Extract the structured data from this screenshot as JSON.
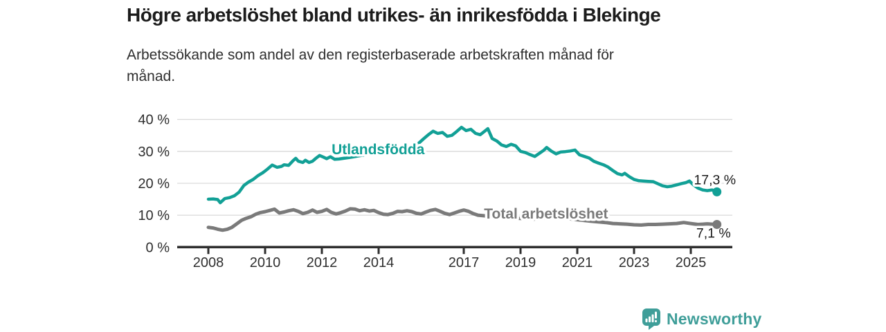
{
  "header": {
    "title": "Högre arbetslöshet bland utrikes- än inrikesfödda i Blekinge",
    "subtitle": "Arbetssökande som andel av den registerbaserade arbetskraften månad för\nmånad."
  },
  "footer": {
    "brand_name": "Newsworthy",
    "brand_color": "#3f9e99",
    "logo_icon": "bar-chart-speech-bubble"
  },
  "colors": {
    "foreign_born_line": "#12a096",
    "total_line": "#7a7a7a",
    "axis": "#2e2e2e",
    "grid": "#d9d9d9",
    "tick_text": "#2e2e2e",
    "value_label_text": "#1a1a1a"
  },
  "chart_data": {
    "type": "line",
    "title": "Högre arbetslöshet bland utrikes- än inrikesfödda i Blekinge",
    "xlabel": "",
    "ylabel": "",
    "unit": "%",
    "ylim": [
      0,
      40
    ],
    "xlim": [
      2006.9,
      2026.5
    ],
    "grid": true,
    "legend_position": "inline-labels",
    "y_ticks": [
      {
        "value": 0,
        "label": "0 %"
      },
      {
        "value": 10,
        "label": "10 %"
      },
      {
        "value": 20,
        "label": "20 %"
      },
      {
        "value": 30,
        "label": "30 %"
      },
      {
        "value": 40,
        "label": "40 %"
      }
    ],
    "x_ticks": [
      {
        "value": 2008,
        "label": "2008"
      },
      {
        "value": 2010,
        "label": "2010"
      },
      {
        "value": 2012,
        "label": "2012"
      },
      {
        "value": 2014,
        "label": "2014"
      },
      {
        "value": 2017,
        "label": "2017"
      },
      {
        "value": 2019,
        "label": "2019"
      },
      {
        "value": 2021,
        "label": "2021"
      },
      {
        "value": 2023,
        "label": "2023"
      },
      {
        "value": 2025,
        "label": "2025"
      }
    ],
    "series": [
      {
        "id": "utlandsfodda",
        "name": "Utlandsfödda",
        "color": "#12a096",
        "line_width": 4.5,
        "end_value": 17.3,
        "inline_label": {
          "text": "Utlandsfödda",
          "x": 2013.98,
          "y": 29.1
        },
        "end_label": {
          "text": "17,3 %",
          "x": 2025.85,
          "y": 19.7
        },
        "points": [
          [
            2008.0,
            15.0
          ],
          [
            2008.17,
            15.1
          ],
          [
            2008.33,
            14.9
          ],
          [
            2008.42,
            13.9
          ],
          [
            2008.58,
            15.2
          ],
          [
            2008.75,
            15.5
          ],
          [
            2008.92,
            16.1
          ],
          [
            2009.08,
            17.2
          ],
          [
            2009.25,
            19.3
          ],
          [
            2009.42,
            20.4
          ],
          [
            2009.58,
            21.2
          ],
          [
            2009.75,
            22.4
          ],
          [
            2009.92,
            23.3
          ],
          [
            2010.08,
            24.4
          ],
          [
            2010.25,
            25.7
          ],
          [
            2010.42,
            25.0
          ],
          [
            2010.58,
            25.3
          ],
          [
            2010.67,
            25.8
          ],
          [
            2010.83,
            25.6
          ],
          [
            2011.0,
            27.2
          ],
          [
            2011.08,
            27.8
          ],
          [
            2011.17,
            26.9
          ],
          [
            2011.33,
            26.5
          ],
          [
            2011.42,
            27.2
          ],
          [
            2011.55,
            26.5
          ],
          [
            2011.67,
            26.9
          ],
          [
            2011.8,
            27.9
          ],
          [
            2011.92,
            28.7
          ],
          [
            2012.05,
            28.2
          ],
          [
            2012.17,
            27.7
          ],
          [
            2012.3,
            28.3
          ],
          [
            2012.45,
            27.5
          ],
          [
            2012.6,
            27.6
          ],
          [
            2013.0,
            28.1
          ],
          [
            2013.33,
            28.6
          ],
          [
            2013.67,
            29.1
          ],
          [
            2014.0,
            29.8
          ],
          [
            2014.33,
            30.3
          ],
          [
            2014.67,
            30.8
          ],
          [
            2015.0,
            31.3
          ],
          [
            2015.25,
            31.8
          ],
          [
            2015.42,
            32.6
          ],
          [
            2015.58,
            33.9
          ],
          [
            2015.75,
            35.2
          ],
          [
            2015.92,
            36.3
          ],
          [
            2016.08,
            35.6
          ],
          [
            2016.25,
            35.9
          ],
          [
            2016.42,
            34.7
          ],
          [
            2016.58,
            35.0
          ],
          [
            2016.75,
            36.2
          ],
          [
            2016.92,
            37.5
          ],
          [
            2017.08,
            36.5
          ],
          [
            2017.25,
            36.9
          ],
          [
            2017.42,
            35.6
          ],
          [
            2017.58,
            35.2
          ],
          [
            2017.75,
            36.4
          ],
          [
            2017.85,
            37.1
          ],
          [
            2018.0,
            34.0
          ],
          [
            2018.17,
            33.2
          ],
          [
            2018.33,
            32.0
          ],
          [
            2018.5,
            31.5
          ],
          [
            2018.67,
            32.2
          ],
          [
            2018.83,
            31.7
          ],
          [
            2019.0,
            30.0
          ],
          [
            2019.17,
            29.6
          ],
          [
            2019.33,
            29.0
          ],
          [
            2019.5,
            28.4
          ],
          [
            2019.67,
            29.4
          ],
          [
            2019.83,
            30.4
          ],
          [
            2019.92,
            31.2
          ],
          [
            2020.08,
            30.1
          ],
          [
            2020.25,
            29.2
          ],
          [
            2020.42,
            29.8
          ],
          [
            2020.58,
            29.9
          ],
          [
            2020.75,
            30.1
          ],
          [
            2020.92,
            30.4
          ],
          [
            2021.08,
            28.9
          ],
          [
            2021.25,
            28.4
          ],
          [
            2021.42,
            27.9
          ],
          [
            2021.58,
            26.9
          ],
          [
            2021.75,
            26.3
          ],
          [
            2021.92,
            25.8
          ],
          [
            2022.08,
            25.1
          ],
          [
            2022.25,
            24.0
          ],
          [
            2022.42,
            23.0
          ],
          [
            2022.58,
            22.6
          ],
          [
            2022.67,
            23.1
          ],
          [
            2022.83,
            22.1
          ],
          [
            2023.0,
            21.2
          ],
          [
            2023.17,
            20.8
          ],
          [
            2023.33,
            20.7
          ],
          [
            2023.5,
            20.6
          ],
          [
            2023.67,
            20.5
          ],
          [
            2023.83,
            19.9
          ],
          [
            2024.0,
            19.2
          ],
          [
            2024.17,
            18.9
          ],
          [
            2024.33,
            19.1
          ],
          [
            2024.5,
            19.5
          ],
          [
            2024.67,
            19.9
          ],
          [
            2024.83,
            20.2
          ],
          [
            2024.95,
            20.7
          ],
          [
            2025.08,
            19.6
          ],
          [
            2025.25,
            18.5
          ],
          [
            2025.42,
            17.9
          ],
          [
            2025.58,
            17.7
          ],
          [
            2025.75,
            17.9
          ],
          [
            2025.92,
            17.3
          ]
        ]
      },
      {
        "id": "total",
        "name": "Total arbetslöshet",
        "color": "#7a7a7a",
        "line_width": 5,
        "end_value": 7.1,
        "inline_label": {
          "text": "Total arbetslöshet",
          "x": 2019.9,
          "y": 8.95
        },
        "end_label": {
          "text": "7,1 %",
          "x": 2025.8,
          "y": 3.0
        },
        "points": [
          [
            2008.0,
            6.2
          ],
          [
            2008.17,
            6.0
          ],
          [
            2008.33,
            5.6
          ],
          [
            2008.5,
            5.3
          ],
          [
            2008.67,
            5.6
          ],
          [
            2008.83,
            6.2
          ],
          [
            2009.0,
            7.3
          ],
          [
            2009.17,
            8.4
          ],
          [
            2009.33,
            9.0
          ],
          [
            2009.5,
            9.5
          ],
          [
            2009.67,
            10.3
          ],
          [
            2009.83,
            10.8
          ],
          [
            2010.0,
            11.1
          ],
          [
            2010.17,
            11.5
          ],
          [
            2010.33,
            11.9
          ],
          [
            2010.5,
            10.7
          ],
          [
            2010.67,
            11.0
          ],
          [
            2010.83,
            11.4
          ],
          [
            2011.0,
            11.7
          ],
          [
            2011.17,
            11.2
          ],
          [
            2011.33,
            10.5
          ],
          [
            2011.5,
            10.9
          ],
          [
            2011.67,
            11.6
          ],
          [
            2011.83,
            10.9
          ],
          [
            2012.0,
            11.2
          ],
          [
            2012.17,
            11.8
          ],
          [
            2012.33,
            10.9
          ],
          [
            2012.5,
            10.4
          ],
          [
            2012.67,
            10.8
          ],
          [
            2012.83,
            11.3
          ],
          [
            2013.0,
            12.0
          ],
          [
            2013.17,
            11.9
          ],
          [
            2013.33,
            11.4
          ],
          [
            2013.5,
            11.7
          ],
          [
            2013.67,
            11.3
          ],
          [
            2013.83,
            11.5
          ],
          [
            2014.0,
            10.8
          ],
          [
            2014.17,
            10.3
          ],
          [
            2014.33,
            10.2
          ],
          [
            2014.5,
            10.6
          ],
          [
            2014.67,
            11.2
          ],
          [
            2014.83,
            11.1
          ],
          [
            2015.0,
            11.4
          ],
          [
            2015.17,
            11.1
          ],
          [
            2015.33,
            10.6
          ],
          [
            2015.5,
            10.4
          ],
          [
            2015.67,
            11.0
          ],
          [
            2015.83,
            11.5
          ],
          [
            2016.0,
            11.8
          ],
          [
            2016.17,
            11.2
          ],
          [
            2016.33,
            10.6
          ],
          [
            2016.5,
            10.2
          ],
          [
            2016.67,
            10.7
          ],
          [
            2016.83,
            11.2
          ],
          [
            2017.0,
            11.6
          ],
          [
            2017.17,
            11.2
          ],
          [
            2017.33,
            10.5
          ],
          [
            2017.5,
            10.0
          ],
          [
            2018.0,
            9.6
          ],
          [
            2018.5,
            9.2
          ],
          [
            2019.0,
            9.0
          ],
          [
            2019.5,
            8.8
          ],
          [
            2020.0,
            9.3
          ],
          [
            2020.5,
            9.1
          ],
          [
            2021.0,
            8.6
          ],
          [
            2021.5,
            8.1
          ],
          [
            2022.0,
            7.7
          ],
          [
            2022.25,
            7.4
          ],
          [
            2022.5,
            7.3
          ],
          [
            2022.75,
            7.2
          ],
          [
            2023.0,
            7.0
          ],
          [
            2023.25,
            6.9
          ],
          [
            2023.5,
            7.1
          ],
          [
            2023.75,
            7.1
          ],
          [
            2024.0,
            7.2
          ],
          [
            2024.25,
            7.3
          ],
          [
            2024.5,
            7.4
          ],
          [
            2024.75,
            7.7
          ],
          [
            2024.92,
            7.5
          ],
          [
            2025.08,
            7.3
          ],
          [
            2025.25,
            7.1
          ],
          [
            2025.42,
            7.2
          ],
          [
            2025.58,
            7.3
          ],
          [
            2025.75,
            7.2
          ],
          [
            2025.92,
            7.1
          ]
        ]
      }
    ]
  }
}
